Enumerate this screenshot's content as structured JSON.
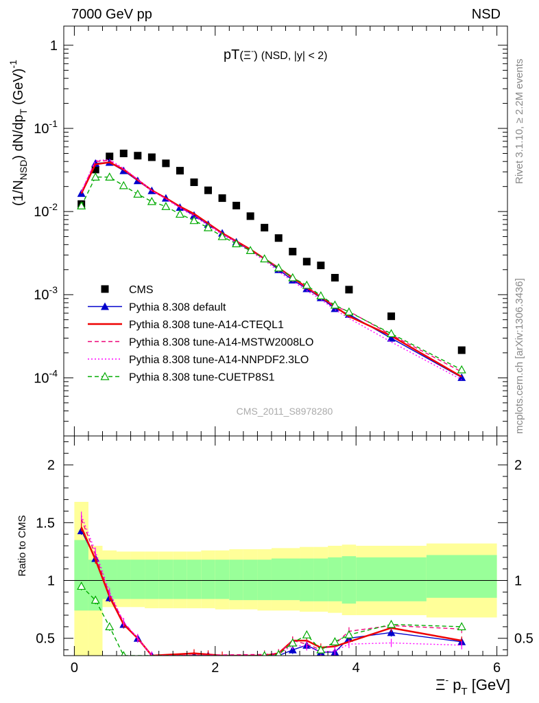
{
  "header": {
    "energy_label": "7000 GeV pp",
    "process_label": "NSD",
    "analysis_id": "CMS_2011_S8978280",
    "rivet_label": "Rivet 3.1.10, ≥ 2.2M events",
    "source_label": "mcplots.cern.ch [arXiv:1306.3436]"
  },
  "title": {
    "main": "pT",
    "particle": "(Ξ",
    "particle_sup": "-",
    "particle_close": ")",
    "cuts": "(NSD, |y| < 2)"
  },
  "axes": {
    "y_top": {
      "label_a": "(1/N",
      "label_a_sub": "NSD",
      "label_b": ") dN/dp",
      "label_b_sub": "T",
      "label_c": " (GeV)",
      "label_c_sup": "-1"
    },
    "y_bottom_label": "Ratio to CMS",
    "x_label_a": "Ξ",
    "x_label_a_sup": "-",
    "x_label_b": " p",
    "x_label_b_sub": "T",
    "x_label_c": " [GeV]",
    "x_ticks": [
      "0",
      "2",
      "4",
      "6"
    ],
    "y_top_ticks": [
      {
        "base": "1",
        "exp": ""
      },
      {
        "base": "10",
        "exp": "-1"
      },
      {
        "base": "10",
        "exp": "-2"
      },
      {
        "base": "10",
        "exp": "-3"
      },
      {
        "base": "10",
        "exp": "-4"
      }
    ],
    "y_bottom_ticks": [
      "2",
      "1.5",
      "1",
      "0.5"
    ],
    "y_bottom_ticks_right": [
      "2",
      "1",
      "0.5"
    ]
  },
  "legend": [
    {
      "label": "CMS",
      "color": "#000000",
      "marker": "square",
      "dash": "none"
    },
    {
      "label": "Pythia 8.308 default",
      "color": "#0000cc",
      "marker": "triangle",
      "dash": "solid"
    },
    {
      "label": "Pythia 8.308 tune-A14-CTEQL1",
      "color": "#ee0000",
      "marker": "none",
      "dash": "solid-thick"
    },
    {
      "label": "Pythia 8.308 tune-A14-MSTW2008LO",
      "color": "#ee0077",
      "marker": "none",
      "dash": "dashed"
    },
    {
      "label": "Pythia 8.308 tune-A14-NNPDF2.3LO",
      "color": "#ff00ff",
      "marker": "none",
      "dash": "dotted"
    },
    {
      "label": "Pythia 8.308 tune-CUETP8S1",
      "color": "#00aa00",
      "marker": "open-triangle",
      "dash": "dashed"
    }
  ],
  "chart_data": [
    {
      "type": "line",
      "panel": "main",
      "y_scale": "log",
      "xlim": [
        -0.15,
        6.15
      ],
      "ylim": [
        2e-05,
        1.7
      ],
      "series": [
        {
          "name": "CMS",
          "color": "#000000",
          "x": [
            0.1,
            0.3,
            0.5,
            0.7,
            0.9,
            1.1,
            1.3,
            1.5,
            1.7,
            1.9,
            2.1,
            2.3,
            2.5,
            2.7,
            2.9,
            3.1,
            3.3,
            3.5,
            3.7,
            3.9,
            4.5,
            5.5
          ],
          "y": [
            0.0123,
            0.032,
            0.046,
            0.05,
            0.047,
            0.045,
            0.038,
            0.031,
            0.0225,
            0.018,
            0.0145,
            0.0118,
            0.0088,
            0.0064,
            0.0048,
            0.0033,
            0.0025,
            0.00225,
            0.0016,
            0.00115,
            0.00055,
            0.000215
          ]
        },
        {
          "name": "Pythia 8.308 default",
          "color": "#0000cc",
          "x": [
            0.1,
            0.3,
            0.5,
            0.7,
            0.9,
            1.1,
            1.3,
            1.5,
            1.7,
            1.9,
            2.1,
            2.3,
            2.5,
            2.7,
            2.9,
            3.1,
            3.3,
            3.5,
            3.7,
            3.9,
            4.5,
            5.5
          ],
          "y": [
            0.0165,
            0.038,
            0.039,
            0.031,
            0.0235,
            0.0178,
            0.0145,
            0.0112,
            0.009,
            0.007,
            0.0055,
            0.0043,
            0.0034,
            0.0027,
            0.002,
            0.0015,
            0.00118,
            0.00092,
            0.00068,
            0.00058,
            0.0003,
            0.000101
          ]
        },
        {
          "name": "Pythia 8.308 tune-A14-CTEQL1",
          "color": "#ee0000",
          "x": [
            0.1,
            0.3,
            0.5,
            0.7,
            0.9,
            1.1,
            1.3,
            1.5,
            1.7,
            1.9,
            2.1,
            2.3,
            2.5,
            2.7,
            2.9,
            3.1,
            3.3,
            3.5,
            3.7,
            3.9,
            4.5,
            5.5
          ],
          "y": [
            0.0165,
            0.037,
            0.039,
            0.032,
            0.024,
            0.018,
            0.0145,
            0.0115,
            0.0094,
            0.0072,
            0.0055,
            0.0044,
            0.0035,
            0.0027,
            0.0021,
            0.0016,
            0.00122,
            0.00094,
            0.00072,
            0.00055,
            0.00032,
            0.000103
          ]
        },
        {
          "name": "Pythia 8.308 tune-A14-MSTW2008LO",
          "color": "#ee0077",
          "x": [
            0.1,
            0.3,
            0.5,
            0.7,
            0.9,
            1.1,
            1.3,
            1.5,
            1.7,
            1.9,
            2.1,
            2.3,
            2.5,
            2.7,
            2.9,
            3.1,
            3.3,
            3.5,
            3.7,
            3.9,
            4.5,
            5.5
          ],
          "y": [
            0.0172,
            0.04,
            0.041,
            0.032,
            0.024,
            0.0178,
            0.0143,
            0.0113,
            0.0091,
            0.0071,
            0.0054,
            0.0044,
            0.0034,
            0.0027,
            0.0021,
            0.00155,
            0.0012,
            0.00095,
            0.00072,
            0.00063,
            0.00033,
            0.000118
          ]
        },
        {
          "name": "Pythia 8.308 tune-A14-NNPDF2.3LO",
          "color": "#ff00ff",
          "x": [
            0.1,
            0.3,
            0.5,
            0.7,
            0.9,
            1.1,
            1.3,
            1.5,
            1.7,
            1.9,
            2.1,
            2.3,
            2.5,
            2.7,
            2.9,
            3.1,
            3.3,
            3.5,
            3.7,
            3.9,
            4.5,
            5.5
          ],
          "y": [
            0.0175,
            0.041,
            0.042,
            0.033,
            0.0245,
            0.0178,
            0.0142,
            0.011,
            0.0088,
            0.0068,
            0.0053,
            0.0042,
            0.0033,
            0.0026,
            0.0019,
            0.00145,
            0.00112,
            0.00088,
            0.00066,
            0.00052,
            0.00027,
            9.5e-05
          ]
        },
        {
          "name": "Pythia 8.308 tune-CUETP8S1",
          "color": "#00aa00",
          "x": [
            0.1,
            0.3,
            0.5,
            0.7,
            0.9,
            1.1,
            1.3,
            1.5,
            1.7,
            1.9,
            2.1,
            2.3,
            2.5,
            2.7,
            2.9,
            3.1,
            3.3,
            3.5,
            3.7,
            3.9,
            4.5,
            5.5
          ],
          "y": [
            0.0117,
            0.026,
            0.026,
            0.0205,
            0.0162,
            0.0132,
            0.0115,
            0.0093,
            0.0078,
            0.0064,
            0.005,
            0.0041,
            0.0034,
            0.0027,
            0.0021,
            0.0016,
            0.0013,
            0.00097,
            0.00075,
            0.00062,
            0.00034,
            0.000125
          ]
        }
      ]
    },
    {
      "type": "line",
      "panel": "ratio",
      "xlim": [
        -0.15,
        6.15
      ],
      "ylim": [
        0.35,
        2.25
      ],
      "reference_line": 1,
      "bins": [
        0.0,
        0.2,
        0.4,
        0.6,
        0.8,
        1.0,
        1.2,
        1.4,
        1.6,
        1.8,
        2.0,
        2.2,
        2.4,
        2.6,
        2.8,
        3.0,
        3.2,
        3.4,
        3.6,
        3.8,
        4.0,
        5.0,
        6.0
      ],
      "band_outer": [
        [
          0.35,
          1.68
        ],
        [
          0.35,
          1.3
        ],
        [
          0.77,
          1.26
        ],
        [
          0.77,
          1.25
        ],
        [
          0.77,
          1.25
        ],
        [
          0.76,
          1.25
        ],
        [
          0.76,
          1.25
        ],
        [
          0.76,
          1.25
        ],
        [
          0.76,
          1.25
        ],
        [
          0.76,
          1.26
        ],
        [
          0.75,
          1.26
        ],
        [
          0.75,
          1.27
        ],
        [
          0.75,
          1.27
        ],
        [
          0.74,
          1.27
        ],
        [
          0.74,
          1.28
        ],
        [
          0.74,
          1.28
        ],
        [
          0.73,
          1.29
        ],
        [
          0.73,
          1.29
        ],
        [
          0.72,
          1.3
        ],
        [
          0.7,
          1.31
        ],
        [
          0.7,
          1.3
        ],
        [
          0.68,
          1.32
        ]
      ],
      "band_inner": [
        [
          0.74,
          1.35
        ],
        [
          0.74,
          1.18
        ],
        [
          0.84,
          1.18
        ],
        [
          0.84,
          1.18
        ],
        [
          0.84,
          1.18
        ],
        [
          0.84,
          1.18
        ],
        [
          0.84,
          1.18
        ],
        [
          0.84,
          1.18
        ],
        [
          0.84,
          1.18
        ],
        [
          0.84,
          1.18
        ],
        [
          0.84,
          1.18
        ],
        [
          0.83,
          1.18
        ],
        [
          0.83,
          1.18
        ],
        [
          0.83,
          1.18
        ],
        [
          0.83,
          1.19
        ],
        [
          0.83,
          1.19
        ],
        [
          0.82,
          1.19
        ],
        [
          0.82,
          1.19
        ],
        [
          0.82,
          1.2
        ],
        [
          0.8,
          1.21
        ],
        [
          0.82,
          1.2
        ],
        [
          0.85,
          1.22
        ]
      ],
      "band_outer_color": "#ffff99",
      "band_inner_color": "#99ff99",
      "series": [
        {
          "name": "Pythia 8.308 default",
          "color": "#0000cc",
          "x": [
            0.1,
            0.3,
            0.5,
            0.7,
            0.9,
            1.1,
            1.7,
            1.9,
            2.7,
            2.9,
            3.1,
            3.3,
            3.5,
            3.7,
            3.9,
            4.5,
            5.5
          ],
          "y": [
            1.43,
            1.19,
            0.85,
            0.62,
            0.5,
            0.35,
            0.35,
            0.35,
            0.35,
            0.35,
            0.4,
            0.44,
            0.38,
            0.38,
            0.5,
            0.55,
            0.47
          ]
        },
        {
          "name": "Pythia 8.308 tune-A14-CTEQL1",
          "color": "#ee0000",
          "x": [
            0.1,
            0.3,
            0.5,
            0.7,
            0.9,
            1.1,
            1.7,
            1.9,
            2.1,
            2.7,
            2.9,
            3.1,
            3.3,
            3.5,
            3.7,
            3.9,
            4.5,
            5.5
          ],
          "y": [
            1.46,
            1.18,
            0.86,
            0.62,
            0.5,
            0.35,
            0.37,
            0.36,
            0.35,
            0.35,
            0.37,
            0.48,
            0.48,
            0.42,
            0.43,
            0.47,
            0.59,
            0.48
          ]
        },
        {
          "name": "Pythia 8.308 tune-A14-MSTW2008LO",
          "color": "#ee0077",
          "x": [
            0.1,
            0.3,
            0.5,
            0.7,
            0.9,
            1.1,
            2.7,
            2.9,
            3.1,
            3.3,
            3.5,
            3.7,
            3.9,
            4.5,
            5.5
          ],
          "y": [
            1.53,
            1.22,
            0.88,
            0.64,
            0.5,
            0.35,
            0.36,
            0.37,
            0.48,
            0.45,
            0.4,
            0.45,
            0.56,
            0.61,
            0.58
          ]
        },
        {
          "name": "Pythia 8.308 tune-A14-NNPDF2.3LO",
          "color": "#ff00ff",
          "x": [
            0.1,
            0.3,
            0.5,
            0.7,
            0.9,
            1.1,
            2.7,
            2.9,
            3.1,
            3.3,
            3.5,
            3.7,
            3.9,
            4.5,
            5.5
          ],
          "y": [
            1.56,
            1.25,
            0.9,
            0.64,
            0.5,
            0.35,
            0.35,
            0.36,
            0.44,
            0.43,
            0.38,
            0.39,
            0.45,
            0.46,
            0.44
          ]
        },
        {
          "name": "Pythia 8.308 tune-CUETP8S1",
          "color": "#00aa00",
          "x": [
            0.1,
            0.3,
            0.5,
            0.7,
            2.7,
            2.9,
            3.1,
            3.3,
            3.5,
            3.7,
            3.9,
            4.5,
            5.5
          ],
          "y": [
            0.95,
            0.83,
            0.6,
            0.35,
            0.35,
            0.36,
            0.46,
            0.53,
            0.4,
            0.47,
            0.53,
            0.62,
            0.6
          ]
        }
      ]
    }
  ]
}
